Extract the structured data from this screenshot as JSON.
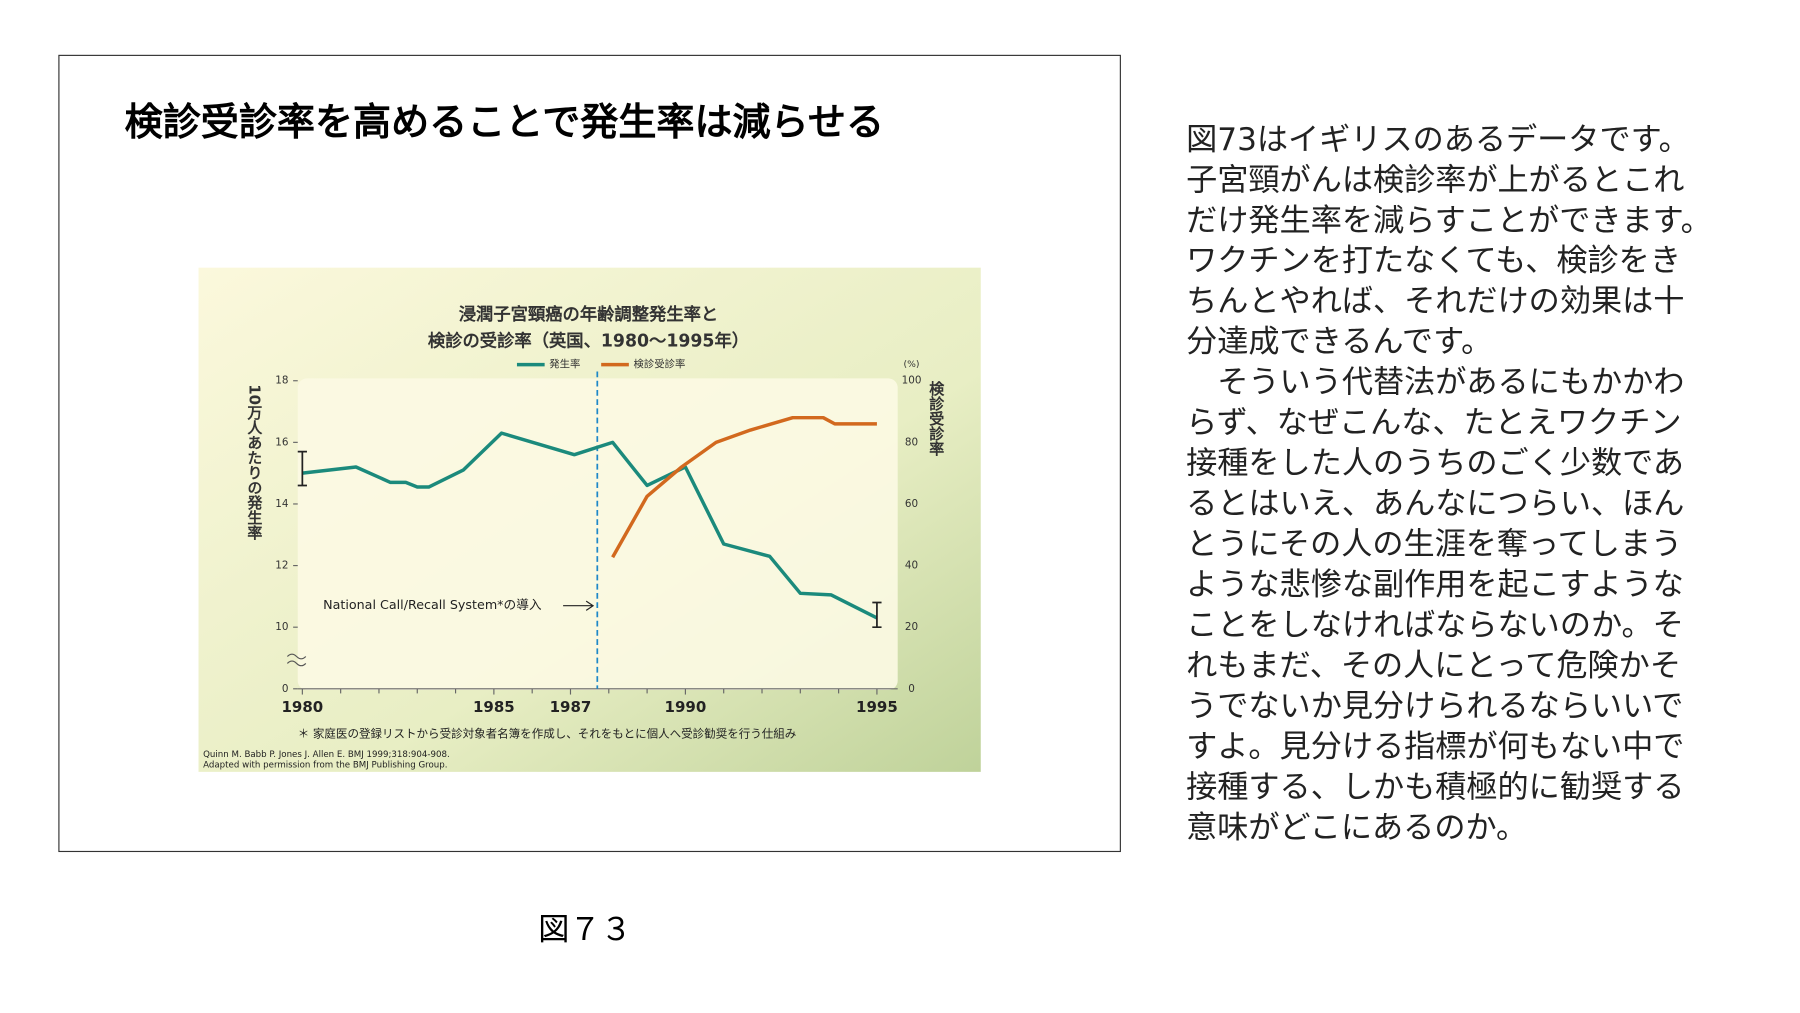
{
  "slide_title": "検診受診率を高めることで発生率は減らせる",
  "chart_data": {
    "type": "line",
    "title_lines": [
      "浸潤子宮頸癌の年齢調整発生率と",
      "検診の受診率（英国、1980～1995年）"
    ],
    "y_label": "10万人あたりの発生率",
    "y2_label": "検診受診率",
    "y2_unit": "(%)",
    "xlim": [
      1980,
      1995
    ],
    "xticks": [
      1980,
      1985,
      1987,
      1990,
      1995
    ],
    "xminor": [
      1981,
      1982,
      1983,
      1984,
      1986,
      1988,
      1989,
      1991,
      1992,
      1993,
      1994
    ],
    "ylim": [
      0,
      18
    ],
    "ybreak": [
      0,
      10
    ],
    "yticks": [
      0,
      10,
      12,
      14,
      16,
      18
    ],
    "y2lim": [
      0,
      100
    ],
    "y2ticks": [
      0,
      20,
      40,
      60,
      80,
      100
    ],
    "series": [
      {
        "name": "発生率",
        "color": "#1b8a7c",
        "x": [
          1980,
          1981.4,
          1982.3,
          1982.7,
          1983,
          1983.3,
          1984.2,
          1985.2,
          1987.1,
          1988.1,
          1989,
          1990,
          1991,
          1992.2,
          1993,
          1993.8,
          1995
        ],
        "values": [
          15.0,
          15.2,
          14.7,
          14.7,
          14.55,
          14.55,
          15.1,
          16.3,
          15.6,
          16.0,
          14.6,
          15.2,
          12.7,
          12.3,
          11.1,
          11.05,
          10.3
        ]
      },
      {
        "name": "検診受診率",
        "color": "#d2691e",
        "axis": "y2",
        "x": [
          1988.1,
          1989,
          1989.9,
          1990.8,
          1991.7,
          1992.8,
          1993.6,
          1993.9,
          1995
        ],
        "values": [
          42.7,
          62.5,
          72,
          80,
          84,
          88,
          88,
          86,
          86
        ]
      }
    ],
    "error_bars": [
      {
        "x": 1980,
        "low": 14.6,
        "high": 15.7
      },
      {
        "x": 1995,
        "low": 10.0,
        "high": 10.8
      }
    ],
    "marker_x": 1987.7,
    "annotation": "National Call/Recall System*の導入",
    "footnote": "＊ 家庭医の登録リストから受診対象者名簿を作成し、それをもとに個人へ受診勧奨を行う仕組み",
    "source_lines": [
      "Quinn M. Babb P. Jones J. Allen E. BMJ 1999;318:904-908.",
      "Adapted with permission from the BMJ Publishing Group."
    ]
  },
  "caption": "図７３",
  "body_lines": [
    "図73はイギリスのあるデータです。",
    "子宮頸がんは検診率が上がるとこれ",
    "だけ発生率を減らすことができます。",
    "ワクチンを打たなくても、検診をき",
    "ちんとやれば、それだけの効果は十",
    "分達成できるんです。",
    "　そういう代替法があるにもかかわ",
    "らず、なぜこんな、たとえワクチン",
    "接種をした人のうちのごく少数であ",
    "るとはいえ、あんなにつらい、ほん",
    "とうにその人の生涯を奪ってしまう",
    "ような悲惨な副作用を起こすような",
    "ことをしなければならないのか。そ",
    "れもまだ、その人にとって危険かそ",
    "うでないか見分けられるならいいで",
    "すよ。見分ける指標が何もない中で",
    "接種する、しかも積極的に勧奨する",
    "意味がどこにあるのか。"
  ]
}
